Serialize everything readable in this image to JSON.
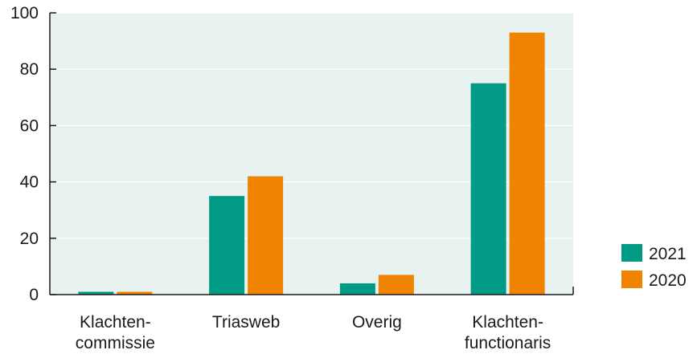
{
  "chart_data": {
    "type": "bar",
    "categories": [
      [
        "Klachten-",
        "commissie"
      ],
      [
        "Triasweb"
      ],
      [
        "Overig"
      ],
      [
        "Klachten-",
        "functionaris"
      ]
    ],
    "series": [
      {
        "name": "2021",
        "values": [
          1,
          35,
          4,
          75
        ],
        "color": "#009a85"
      },
      {
        "name": "2020",
        "values": [
          1,
          42,
          7,
          93
        ],
        "color": "#f08300"
      }
    ],
    "yticks": [
      "0",
      "20",
      "40",
      "60",
      "80",
      "100"
    ],
    "ylim": [
      0,
      100
    ],
    "grid": true,
    "legend_position": "bottom-right",
    "plot_background": "#e8f3f1",
    "grid_color": "#ffffff",
    "axis_color": "#1a1a1a"
  }
}
